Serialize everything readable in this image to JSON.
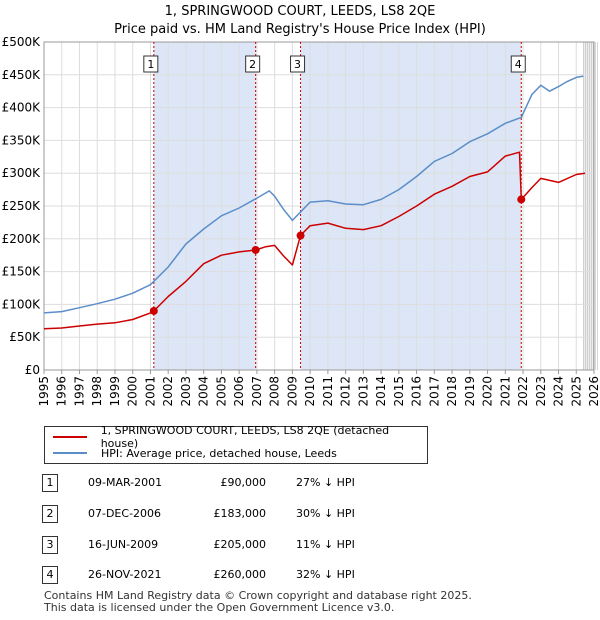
{
  "title": "1, SPRINGWOOD COURT, LEEDS, LS8 2QE",
  "subtitle": "Price paid vs. HM Land Registry's House Price Index (HPI)",
  "colors": {
    "property": "#cc0000",
    "hpi": "#5b8ec9",
    "shade": "#dde6f7",
    "grid": "#dddddd",
    "marker_line": "#cc0000"
  },
  "chart_data": {
    "type": "line",
    "title": "Price paid vs. HM Land Registry's House Price Index (HPI)",
    "xlim": [
      1995,
      2026
    ],
    "ylim": [
      0,
      500000
    ],
    "y_ticks": [
      0,
      50000,
      100000,
      150000,
      200000,
      250000,
      300000,
      350000,
      400000,
      450000,
      500000
    ],
    "y_tick_labels": [
      "£0",
      "£50K",
      "£100K",
      "£150K",
      "£200K",
      "£250K",
      "£300K",
      "£350K",
      "£400K",
      "£450K",
      "£500K"
    ],
    "x_ticks": [
      "1995",
      "1996",
      "1997",
      "1998",
      "1999",
      "2000",
      "2001",
      "2002",
      "2003",
      "2004",
      "2005",
      "2006",
      "2007",
      "2008",
      "2009",
      "2010",
      "2011",
      "2012",
      "2013",
      "2014",
      "2015",
      "2016",
      "2017",
      "2018",
      "2019",
      "2020",
      "2021",
      "2022",
      "2023",
      "2024",
      "2025",
      "2026"
    ],
    "grid": true,
    "shaded_ranges": [
      [
        2001.19,
        2006.93
      ],
      [
        2009.46,
        2021.9
      ]
    ],
    "future_from": 2025.4,
    "sale_markers": [
      {
        "label": "1",
        "x": 2001.19,
        "y": 90000
      },
      {
        "label": "2",
        "x": 2006.93,
        "y": 183000
      },
      {
        "label": "3",
        "x": 2009.46,
        "y": 205000
      },
      {
        "label": "4",
        "x": 2021.9,
        "y": 260000
      }
    ],
    "series": [
      {
        "name": "1, SPRINGWOOD COURT, LEEDS, LS8 2QE (detached house)",
        "x": [
          1995.0,
          1996.0,
          1997.0,
          1998.0,
          1999.0,
          2000.0,
          2001.0,
          2001.19,
          2002.0,
          2003.0,
          2004.0,
          2005.0,
          2006.0,
          2006.93,
          2007.5,
          2008.0,
          2008.5,
          2009.0,
          2009.46,
          2010.0,
          2011.0,
          2012.0,
          2013.0,
          2014.0,
          2015.0,
          2016.0,
          2017.0,
          2018.0,
          2019.0,
          2020.0,
          2021.0,
          2021.8,
          2021.9,
          2022.5,
          2023.0,
          2024.0,
          2025.0,
          2025.5
        ],
        "y": [
          63000,
          64000,
          67000,
          70000,
          72000,
          77000,
          87000,
          90000,
          112000,
          135000,
          162000,
          175000,
          180000,
          183000,
          188000,
          190000,
          174000,
          160000,
          205000,
          220000,
          224000,
          216000,
          214000,
          220000,
          234000,
          250000,
          268000,
          280000,
          295000,
          302000,
          326000,
          332000,
          260000,
          278000,
          292000,
          286000,
          298000,
          300000
        ]
      },
      {
        "name": "HPI: Average price, detached house, Leeds",
        "x": [
          1995.0,
          1996.0,
          1997.0,
          1998.0,
          1999.0,
          2000.0,
          2001.0,
          2002.0,
          2003.0,
          2004.0,
          2005.0,
          2006.0,
          2007.0,
          2007.7,
          2008.0,
          2008.5,
          2009.0,
          2009.5,
          2010.0,
          2011.0,
          2012.0,
          2013.0,
          2014.0,
          2015.0,
          2016.0,
          2017.0,
          2018.0,
          2019.0,
          2020.0,
          2021.0,
          2021.9,
          2022.5,
          2023.0,
          2023.5,
          2024.0,
          2024.5,
          2025.0,
          2025.4
        ],
        "y": [
          87000,
          89000,
          95000,
          101000,
          108000,
          117000,
          130000,
          157000,
          192000,
          215000,
          235000,
          247000,
          262000,
          273000,
          265000,
          245000,
          228000,
          242000,
          256000,
          258000,
          253000,
          252000,
          260000,
          275000,
          295000,
          318000,
          330000,
          348000,
          360000,
          376000,
          385000,
          420000,
          434000,
          425000,
          432000,
          440000,
          446000,
          448000
        ]
      }
    ]
  },
  "legend": {
    "property_label": "1, SPRINGWOOD COURT, LEEDS, LS8 2QE (detached house)",
    "hpi_label": "HPI: Average price, detached house, Leeds"
  },
  "sales": [
    {
      "num": "1",
      "date": "09-MAR-2001",
      "price": "£90,000",
      "delta": "27% ↓ HPI"
    },
    {
      "num": "2",
      "date": "07-DEC-2006",
      "price": "£183,000",
      "delta": "30% ↓ HPI"
    },
    {
      "num": "3",
      "date": "16-JUN-2009",
      "price": "£205,000",
      "delta": "11% ↓ HPI"
    },
    {
      "num": "4",
      "date": "26-NOV-2021",
      "price": "£260,000",
      "delta": "32% ↓ HPI"
    }
  ],
  "footer": {
    "line1": "Contains HM Land Registry data © Crown copyright and database right 2025.",
    "line2": "This data is licensed under the Open Government Licence v3.0."
  }
}
